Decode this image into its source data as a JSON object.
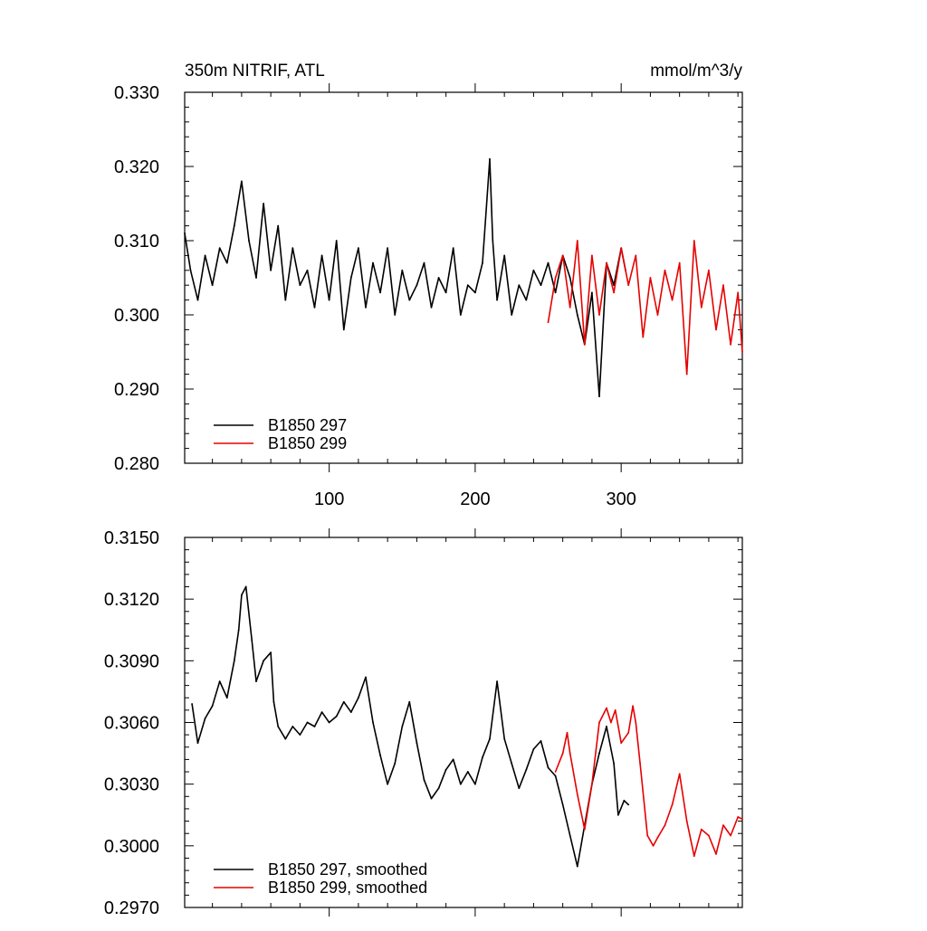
{
  "chart_data": [
    {
      "type": "line",
      "title_left": "350m NITRIF, ATL",
      "title_right": "mmol/m^3/y",
      "xlabel": "",
      "ylabel": "",
      "xlim": [
        1,
        383
      ],
      "ylim": [
        0.28,
        0.33
      ],
      "xticks": [
        100,
        200,
        300
      ],
      "xtick_labels": [
        "100",
        "200",
        "300"
      ],
      "yticks": [
        0.28,
        0.29,
        0.3,
        0.31,
        0.32,
        0.33
      ],
      "ytick_labels": [
        "0.280",
        "0.290",
        "0.300",
        "0.310",
        "0.320",
        "0.330"
      ],
      "grid": false,
      "legend_position": "bottom-left",
      "series": [
        {
          "name": "B1850 297",
          "color": "#000000",
          "x": [
            1,
            5,
            10,
            15,
            20,
            25,
            30,
            35,
            40,
            45,
            50,
            55,
            60,
            65,
            70,
            75,
            80,
            85,
            90,
            95,
            100,
            105,
            110,
            115,
            120,
            125,
            130,
            135,
            140,
            145,
            150,
            155,
            160,
            165,
            170,
            175,
            180,
            185,
            190,
            195,
            200,
            205,
            210,
            212,
            215,
            220,
            225,
            230,
            235,
            240,
            245,
            250,
            255,
            260,
            265,
            270,
            275,
            280,
            285,
            290,
            295,
            300,
            303
          ],
          "values": [
            0.311,
            0.306,
            0.302,
            0.308,
            0.304,
            0.309,
            0.307,
            0.312,
            0.318,
            0.31,
            0.305,
            0.315,
            0.306,
            0.312,
            0.302,
            0.309,
            0.304,
            0.306,
            0.301,
            0.308,
            0.302,
            0.31,
            0.298,
            0.305,
            0.309,
            0.301,
            0.307,
            0.303,
            0.309,
            0.3,
            0.306,
            0.302,
            0.304,
            0.307,
            0.301,
            0.305,
            0.303,
            0.309,
            0.3,
            0.304,
            0.303,
            0.307,
            0.321,
            0.31,
            0.302,
            0.308,
            0.3,
            0.304,
            0.302,
            0.306,
            0.304,
            0.307,
            0.303,
            0.308,
            0.305,
            0.3,
            0.296,
            0.303,
            0.289,
            0.307,
            0.304,
            0.309,
            0.306
          ]
        },
        {
          "name": "B1850 299",
          "color": "#e60000",
          "x": [
            250,
            255,
            260,
            265,
            270,
            275,
            280,
            285,
            290,
            295,
            300,
            305,
            310,
            315,
            320,
            325,
            330,
            335,
            340,
            345,
            350,
            355,
            360,
            365,
            370,
            375,
            380,
            383
          ],
          "values": [
            0.299,
            0.305,
            0.308,
            0.301,
            0.31,
            0.296,
            0.308,
            0.3,
            0.307,
            0.303,
            0.309,
            0.304,
            0.308,
            0.297,
            0.305,
            0.3,
            0.306,
            0.302,
            0.307,
            0.292,
            0.31,
            0.301,
            0.306,
            0.298,
            0.304,
            0.296,
            0.303,
            0.295
          ]
        }
      ]
    },
    {
      "type": "line",
      "xlabel": "",
      "ylabel": "",
      "xlim": [
        1,
        383
      ],
      "ylim": [
        0.297,
        0.315
      ],
      "xticks": [
        100,
        200,
        300
      ],
      "yticks": [
        0.297,
        0.3,
        0.303,
        0.306,
        0.309,
        0.312,
        0.315
      ],
      "ytick_labels": [
        "0.2970",
        "0.3000",
        "0.3030",
        "0.3060",
        "0.3090",
        "0.3120",
        "0.3150"
      ],
      "grid": false,
      "legend_position": "bottom-left",
      "series": [
        {
          "name": "B1850 297, smoothed",
          "color": "#000000",
          "x": [
            6,
            10,
            15,
            20,
            25,
            30,
            35,
            38,
            40,
            43,
            47,
            50,
            55,
            60,
            62,
            65,
            70,
            75,
            80,
            85,
            90,
            95,
            100,
            105,
            110,
            115,
            120,
            125,
            130,
            135,
            140,
            145,
            150,
            155,
            160,
            165,
            170,
            175,
            180,
            185,
            190,
            195,
            200,
            205,
            210,
            215,
            220,
            225,
            230,
            235,
            240,
            245,
            250,
            255,
            260,
            265,
            270,
            275,
            280,
            285,
            290,
            295,
            298,
            302,
            305
          ],
          "values": [
            0.3069,
            0.305,
            0.3062,
            0.3068,
            0.308,
            0.3072,
            0.309,
            0.3105,
            0.3122,
            0.3126,
            0.31,
            0.308,
            0.309,
            0.3094,
            0.307,
            0.3058,
            0.3052,
            0.3058,
            0.3054,
            0.306,
            0.3058,
            0.3065,
            0.306,
            0.3063,
            0.307,
            0.3065,
            0.3072,
            0.3082,
            0.306,
            0.3044,
            0.303,
            0.304,
            0.3058,
            0.307,
            0.305,
            0.3032,
            0.3023,
            0.3028,
            0.3037,
            0.3042,
            0.303,
            0.3036,
            0.303,
            0.3043,
            0.3052,
            0.308,
            0.3052,
            0.304,
            0.3028,
            0.3037,
            0.3047,
            0.3051,
            0.3038,
            0.3034,
            0.302,
            0.3005,
            0.299,
            0.301,
            0.303,
            0.3045,
            0.3058,
            0.304,
            0.3015,
            0.3022,
            0.302
          ]
        },
        {
          "name": "B1850 299, smoothed",
          "color": "#e60000",
          "x": [
            255,
            260,
            263,
            265,
            270,
            275,
            280,
            285,
            290,
            293,
            296,
            300,
            305,
            308,
            310,
            313,
            318,
            322,
            325,
            330,
            335,
            340,
            345,
            350,
            355,
            360,
            365,
            370,
            375,
            380,
            383
          ],
          "values": [
            0.3036,
            0.3045,
            0.3055,
            0.3045,
            0.3025,
            0.3008,
            0.303,
            0.306,
            0.3067,
            0.306,
            0.3066,
            0.305,
            0.3055,
            0.3068,
            0.306,
            0.304,
            0.3005,
            0.3,
            0.3004,
            0.301,
            0.302,
            0.3035,
            0.3012,
            0.2995,
            0.3008,
            0.3005,
            0.2996,
            0.301,
            0.3005,
            0.3014,
            0.3013
          ]
        }
      ]
    }
  ]
}
